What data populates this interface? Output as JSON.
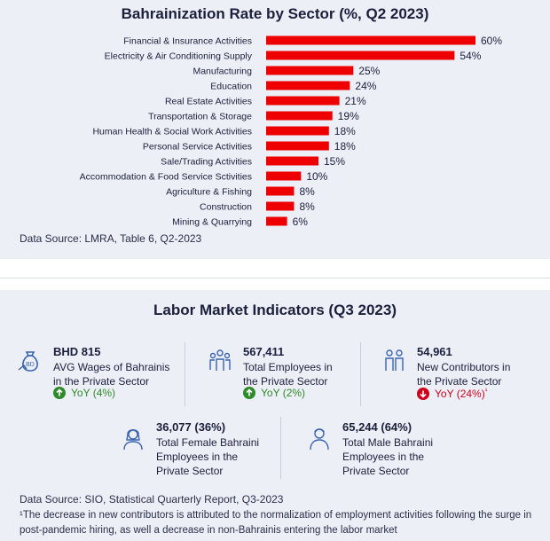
{
  "chart_data": {
    "type": "bar",
    "orientation": "horizontal",
    "title": "Bahrainization Rate by Sector (%, Q2 2023)",
    "categories": [
      "Financial & Insurance Activities",
      "Electricity & Air Conditioning Supply",
      "Manufacturing",
      "Education",
      "Real Estate Activities",
      "Transportation & Storage",
      "Human Health & Social Work Activities",
      "Personal Service Activities",
      "Sale/Trading Activities",
      "Accommodation & Food Service Sctivities",
      "Agriculture & Fishing",
      "Construction",
      "Mining & Quarrying"
    ],
    "values": [
      60,
      54,
      25,
      24,
      21,
      19,
      18,
      18,
      15,
      10,
      8,
      8,
      6
    ],
    "value_labels": [
      "60%",
      "54%",
      "25%",
      "24%",
      "21%",
      "19%",
      "18%",
      "18%",
      "15%",
      "10%",
      "8%",
      "8%",
      "6%"
    ],
    "bar_color": "#ee0000",
    "xlim": [
      0,
      60
    ],
    "grid": false,
    "source": "Data Source: LMRA, Table 6, Q2-2023"
  },
  "labor_market": {
    "title": "Labor Market Indicators (Q3 2023)",
    "stats": [
      {
        "value": "BHD 815",
        "label_lines": [
          "AVG Wages of Bahrainis",
          "in the Private Sector"
        ],
        "yoy": "YoY (4%)",
        "direction": "up",
        "icon": "money-bag-icon"
      },
      {
        "value": "567,411",
        "label_lines": [
          "Total Employees in",
          "the Private Sector"
        ],
        "yoy": "YoY (2%)",
        "direction": "up",
        "icon": "group-people-icon"
      },
      {
        "value": "54,961",
        "label_lines": [
          "New Contributors in",
          "the Private Sector"
        ],
        "yoy": "YoY (24%)",
        "yoy_note": "¹",
        "direction": "down",
        "icon": "two-people-icon"
      },
      {
        "value": "36,077 (36%)",
        "label_lines": [
          "Total Female Bahraini",
          "Employees in the",
          "Private Sector"
        ],
        "icon": "female-person-icon"
      },
      {
        "value": "65,244 (64%)",
        "label_lines": [
          "Total Male Bahraini",
          "Employees in the",
          "Private Sector"
        ],
        "icon": "male-person-icon"
      }
    ],
    "source": "Data Source: SIO, Statistical Quarterly Report, Q3-2023",
    "footnote": "¹The decrease in new contributors is  attributed to the normalization of employment activities following the surge in post-pandemic hiring, as well a decrease in non-Bahrainis entering the labor market"
  },
  "colors": {
    "up": "#2f8a2a",
    "down": "#d0021b",
    "bar": "#ee0000",
    "icon": "#3a64b0"
  }
}
